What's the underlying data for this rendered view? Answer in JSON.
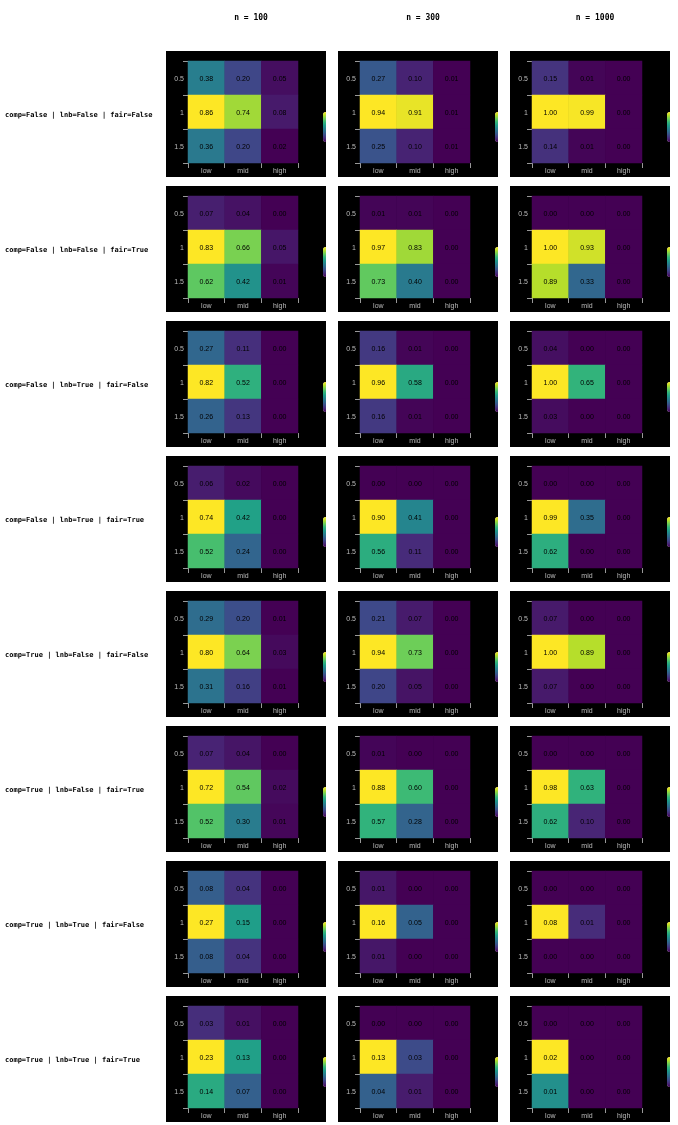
{
  "chart_data": [
    {
      "type": "heatmap",
      "title": "n = 100",
      "ylabel": "comp=False | lnb=False | fair=False",
      "categories": [
        "low",
        "mid",
        "high"
      ],
      "y_categories": [
        "0.5",
        "1",
        "1.5"
      ],
      "cells": [
        [
          0.38,
          0.2,
          0.05
        ],
        [
          0.86,
          0.74,
          0.08
        ],
        [
          0.36,
          0.2,
          0.02
        ]
      ],
      "cell_labels": [
        [
          "0.38",
          "0.20",
          "0.05"
        ],
        [
          "0.86",
          "0.74",
          "0.08"
        ],
        [
          "0.36",
          "0.20",
          "0.02"
        ]
      ]
    },
    {
      "type": "heatmap",
      "title": "n = 300",
      "categories": [
        "low",
        "mid",
        "high"
      ],
      "y_categories": [
        "0.5",
        "1",
        "1.5"
      ],
      "cells": [
        [
          0.27,
          0.1,
          0.01
        ],
        [
          0.94,
          0.91,
          0.01
        ],
        [
          0.25,
          0.1,
          0.01
        ]
      ],
      "cell_labels": [
        [
          "0.27",
          "0.10",
          "0.01"
        ],
        [
          "0.94",
          "0.91",
          "0.01"
        ],
        [
          "0.25",
          "0.10",
          "0.01"
        ]
      ]
    },
    {
      "type": "heatmap",
      "title": "n = 1000",
      "categories": [
        "low",
        "mid",
        "high"
      ],
      "y_categories": [
        "0.5",
        "1",
        "1.5"
      ],
      "cells": [
        [
          0.15,
          0.01,
          0.0
        ],
        [
          1.0,
          0.99,
          0.0
        ],
        [
          0.14,
          0.01,
          0.0
        ]
      ],
      "cell_labels": [
        [
          "0.15",
          "0.01",
          "0.00"
        ],
        [
          "1.00",
          "0.99",
          "0.00"
        ],
        [
          "0.14",
          "0.01",
          "0.00"
        ]
      ]
    },
    {
      "type": "heatmap",
      "ylabel": "comp=False | lnb=False | fair=True",
      "categories": [
        "low",
        "mid",
        "high"
      ],
      "y_categories": [
        "0.5",
        "1",
        "1.5"
      ],
      "cells": [
        [
          0.07,
          0.04,
          0.0
        ],
        [
          0.83,
          0.66,
          0.05
        ],
        [
          0.62,
          0.42,
          0.01
        ]
      ],
      "cell_labels": [
        [
          "0.07",
          "0.04",
          "0.00"
        ],
        [
          "0.83",
          "0.66",
          "0.05"
        ],
        [
          "0.62",
          "0.42",
          "0.01"
        ]
      ]
    },
    {
      "type": "heatmap",
      "categories": [
        "low",
        "mid",
        "high"
      ],
      "y_categories": [
        "0.5",
        "1",
        "1.5"
      ],
      "cells": [
        [
          0.01,
          0.01,
          0.0
        ],
        [
          0.97,
          0.83,
          0.0
        ],
        [
          0.73,
          0.4,
          0.0
        ]
      ],
      "cell_labels": [
        [
          "0.01",
          "0.01",
          "0.00"
        ],
        [
          "0.97",
          "0.83",
          "0.00"
        ],
        [
          "0.73",
          "0.40",
          "0.00"
        ]
      ]
    },
    {
      "type": "heatmap",
      "categories": [
        "low",
        "mid",
        "high"
      ],
      "y_categories": [
        "0.5",
        "1",
        "1.5"
      ],
      "cells": [
        [
          0.0,
          0.0,
          0.0
        ],
        [
          1.0,
          0.93,
          0.0
        ],
        [
          0.89,
          0.33,
          0.0
        ]
      ],
      "cell_labels": [
        [
          "0.00",
          "0.00",
          "0.00"
        ],
        [
          "1.00",
          "0.93",
          "0.00"
        ],
        [
          "0.89",
          "0.33",
          "0.00"
        ]
      ]
    },
    {
      "type": "heatmap",
      "ylabel": "comp=False | lnb=True | fair=False",
      "categories": [
        "low",
        "mid",
        "high"
      ],
      "y_categories": [
        "0.5",
        "1",
        "1.5"
      ],
      "cells": [
        [
          0.27,
          0.11,
          0.0
        ],
        [
          0.82,
          0.52,
          0.0
        ],
        [
          0.26,
          0.13,
          0.0
        ]
      ],
      "cell_labels": [
        [
          "0.27",
          "0.11",
          "0.00"
        ],
        [
          "0.82",
          "0.52",
          "0.00"
        ],
        [
          "0.26",
          "0.13",
          "0.00"
        ]
      ]
    },
    {
      "type": "heatmap",
      "categories": [
        "low",
        "mid",
        "high"
      ],
      "y_categories": [
        "0.5",
        "1",
        "1.5"
      ],
      "cells": [
        [
          0.16,
          0.01,
          0.0
        ],
        [
          0.96,
          0.58,
          0.0
        ],
        [
          0.16,
          0.01,
          0.0
        ]
      ],
      "cell_labels": [
        [
          "0.16",
          "0.01",
          "0.00"
        ],
        [
          "0.96",
          "0.58",
          "0.00"
        ],
        [
          "0.16",
          "0.01",
          "0.00"
        ]
      ]
    },
    {
      "type": "heatmap",
      "categories": [
        "low",
        "mid",
        "high"
      ],
      "y_categories": [
        "0.5",
        "1",
        "1.5"
      ],
      "cells": [
        [
          0.04,
          0.0,
          0.0
        ],
        [
          1.0,
          0.65,
          0.0
        ],
        [
          0.03,
          0.0,
          0.0
        ]
      ],
      "cell_labels": [
        [
          "0.04",
          "0.00",
          "0.00"
        ],
        [
          "1.00",
          "0.65",
          "0.00"
        ],
        [
          "0.03",
          "0.00",
          "0.00"
        ]
      ]
    },
    {
      "type": "heatmap",
      "ylabel": "comp=False | lnb=True | fair=True",
      "categories": [
        "low",
        "mid",
        "high"
      ],
      "y_categories": [
        "0.5",
        "1",
        "1.5"
      ],
      "cells": [
        [
          0.06,
          0.02,
          0.0
        ],
        [
          0.74,
          0.42,
          0.0
        ],
        [
          0.52,
          0.24,
          0.0
        ]
      ],
      "cell_labels": [
        [
          "0.06",
          "0.02",
          "0.00"
        ],
        [
          "0.74",
          "0.42",
          "0.00"
        ],
        [
          "0.52",
          "0.24",
          "0.00"
        ]
      ]
    },
    {
      "type": "heatmap",
      "categories": [
        "low",
        "mid",
        "high"
      ],
      "y_categories": [
        "0.5",
        "1",
        "1.5"
      ],
      "cells": [
        [
          0.0,
          0.0,
          0.0
        ],
        [
          0.9,
          0.41,
          0.0
        ],
        [
          0.56,
          0.11,
          0.0
        ]
      ],
      "cell_labels": [
        [
          "0.00",
          "0.00",
          "0.00"
        ],
        [
          "0.90",
          "0.41",
          "0.00"
        ],
        [
          "0.56",
          "0.11",
          "0.00"
        ]
      ]
    },
    {
      "type": "heatmap",
      "categories": [
        "low",
        "mid",
        "high"
      ],
      "y_categories": [
        "0.5",
        "1",
        "1.5"
      ],
      "cells": [
        [
          0.0,
          0.0,
          0.0
        ],
        [
          0.99,
          0.35,
          0.0
        ],
        [
          0.62,
          0.0,
          0.0
        ]
      ],
      "cell_labels": [
        [
          "0.00",
          "0.00",
          "0.00"
        ],
        [
          "0.99",
          "0.35",
          "0.00"
        ],
        [
          "0.62",
          "0.00",
          "0.00"
        ]
      ]
    },
    {
      "type": "heatmap",
      "ylabel": "comp=True | lnb=False | fair=False",
      "categories": [
        "low",
        "mid",
        "high"
      ],
      "y_categories": [
        "0.5",
        "1",
        "1.5"
      ],
      "cells": [
        [
          0.29,
          0.2,
          0.01
        ],
        [
          0.8,
          0.64,
          0.03
        ],
        [
          0.31,
          0.16,
          0.01
        ]
      ],
      "cell_labels": [
        [
          "0.29",
          "0.20",
          "0.01"
        ],
        [
          "0.80",
          "0.64",
          "0.03"
        ],
        [
          "0.31",
          "0.16",
          "0.01"
        ]
      ]
    },
    {
      "type": "heatmap",
      "categories": [
        "low",
        "mid",
        "high"
      ],
      "y_categories": [
        "0.5",
        "1",
        "1.5"
      ],
      "cells": [
        [
          0.21,
          0.07,
          0.0
        ],
        [
          0.94,
          0.73,
          0.0
        ],
        [
          0.2,
          0.05,
          0.0
        ]
      ],
      "cell_labels": [
        [
          "0.21",
          "0.07",
          "0.00"
        ],
        [
          "0.94",
          "0.73",
          "0.00"
        ],
        [
          "0.20",
          "0.05",
          "0.00"
        ]
      ]
    },
    {
      "type": "heatmap",
      "categories": [
        "low",
        "mid",
        "high"
      ],
      "y_categories": [
        "0.5",
        "1",
        "1.5"
      ],
      "cells": [
        [
          0.07,
          0.0,
          0.0
        ],
        [
          1.0,
          0.89,
          0.0
        ],
        [
          0.07,
          0.0,
          0.0
        ]
      ],
      "cell_labels": [
        [
          "0.07",
          "0.00",
          "0.00"
        ],
        [
          "1.00",
          "0.89",
          "0.00"
        ],
        [
          "0.07",
          "0.00",
          "0.00"
        ]
      ]
    },
    {
      "type": "heatmap",
      "ylabel": "comp=True | lnb=False | fair=True",
      "categories": [
        "low",
        "mid",
        "high"
      ],
      "y_categories": [
        "0.5",
        "1",
        "1.5"
      ],
      "cells": [
        [
          0.07,
          0.04,
          0.0
        ],
        [
          0.72,
          0.54,
          0.02
        ],
        [
          0.52,
          0.3,
          0.01
        ]
      ],
      "cell_labels": [
        [
          "0.07",
          "0.04",
          "0.00"
        ],
        [
          "0.72",
          "0.54",
          "0.02"
        ],
        [
          "0.52",
          "0.30",
          "0.01"
        ]
      ]
    },
    {
      "type": "heatmap",
      "categories": [
        "low",
        "mid",
        "high"
      ],
      "y_categories": [
        "0.5",
        "1",
        "1.5"
      ],
      "cells": [
        [
          0.01,
          0.0,
          0.0
        ],
        [
          0.88,
          0.6,
          0.0
        ],
        [
          0.57,
          0.28,
          0.0
        ]
      ],
      "cell_labels": [
        [
          "0.01",
          "0.00",
          "0.00"
        ],
        [
          "0.88",
          "0.60",
          "0.00"
        ],
        [
          "0.57",
          "0.28",
          "0.00"
        ]
      ]
    },
    {
      "type": "heatmap",
      "categories": [
        "low",
        "mid",
        "high"
      ],
      "y_categories": [
        "0.5",
        "1",
        "1.5"
      ],
      "cells": [
        [
          0.0,
          0.0,
          0.0
        ],
        [
          0.98,
          0.63,
          0.0
        ],
        [
          0.62,
          0.1,
          0.0
        ]
      ],
      "cell_labels": [
        [
          "0.00",
          "0.00",
          "0.00"
        ],
        [
          "0.98",
          "0.63",
          "0.00"
        ],
        [
          "0.62",
          "0.10",
          "0.00"
        ]
      ]
    },
    {
      "type": "heatmap",
      "ylabel": "comp=True | lnb=True | fair=False",
      "categories": [
        "low",
        "mid",
        "high"
      ],
      "y_categories": [
        "0.5",
        "1",
        "1.5"
      ],
      "cells": [
        [
          0.08,
          0.04,
          0.0
        ],
        [
          0.27,
          0.15,
          0.0
        ],
        [
          0.08,
          0.04,
          0.0
        ]
      ],
      "cell_labels": [
        [
          "0.08",
          "0.04",
          "0.00"
        ],
        [
          "0.27",
          "0.15",
          "0.00"
        ],
        [
          "0.08",
          "0.04",
          "0.00"
        ]
      ]
    },
    {
      "type": "heatmap",
      "categories": [
        "low",
        "mid",
        "high"
      ],
      "y_categories": [
        "0.5",
        "1",
        "1.5"
      ],
      "cells": [
        [
          0.01,
          0.0,
          0.0
        ],
        [
          0.16,
          0.05,
          0.0
        ],
        [
          0.01,
          0.0,
          0.0
        ]
      ],
      "cell_labels": [
        [
          "0.01",
          "0.00",
          "0.00"
        ],
        [
          "0.16",
          "0.05",
          "0.00"
        ],
        [
          "0.01",
          "0.00",
          "0.00"
        ]
      ]
    },
    {
      "type": "heatmap",
      "categories": [
        "low",
        "mid",
        "high"
      ],
      "y_categories": [
        "0.5",
        "1",
        "1.5"
      ],
      "cells": [
        [
          0.0,
          0.0,
          0.0
        ],
        [
          0.08,
          0.01,
          0.0
        ],
        [
          0.0,
          0.0,
          0.0
        ]
      ],
      "cell_labels": [
        [
          "0.00",
          "0.00",
          "0.00"
        ],
        [
          "0.08",
          "0.01",
          "0.00"
        ],
        [
          "0.00",
          "0.00",
          "0.00"
        ]
      ]
    },
    {
      "type": "heatmap",
      "ylabel": "comp=True | lnb=True | fair=True",
      "categories": [
        "low",
        "mid",
        "high"
      ],
      "y_categories": [
        "0.5",
        "1",
        "1.5"
      ],
      "cells": [
        [
          0.03,
          0.01,
          0.0
        ],
        [
          0.23,
          0.13,
          0.0
        ],
        [
          0.14,
          0.07,
          0.0
        ]
      ],
      "cell_labels": [
        [
          "0.03",
          "0.01",
          "0.00"
        ],
        [
          "0.23",
          "0.13",
          "0.00"
        ],
        [
          "0.14",
          "0.07",
          "0.00"
        ]
      ]
    },
    {
      "type": "heatmap",
      "categories": [
        "low",
        "mid",
        "high"
      ],
      "y_categories": [
        "0.5",
        "1",
        "1.5"
      ],
      "cells": [
        [
          0.0,
          0.0,
          0.0
        ],
        [
          0.13,
          0.03,
          0.0
        ],
        [
          0.04,
          0.01,
          0.0
        ]
      ],
      "cell_labels": [
        [
          "0.00",
          "0.00",
          "0.00"
        ],
        [
          "0.13",
          "0.03",
          "0.00"
        ],
        [
          "0.04",
          "0.01",
          "0.00"
        ]
      ]
    },
    {
      "type": "heatmap",
      "categories": [
        "low",
        "mid",
        "high"
      ],
      "y_categories": [
        "0.5",
        "1",
        "1.5"
      ],
      "cells": [
        [
          0.0,
          0.0,
          0.0
        ],
        [
          0.02,
          0.0,
          0.0
        ],
        [
          0.01,
          0.0,
          0.0
        ]
      ],
      "cell_labels": [
        [
          "0.00",
          "0.00",
          "0.00"
        ],
        [
          "0.02",
          "0.00",
          "0.00"
        ],
        [
          "0.01",
          "0.00",
          "0.00"
        ]
      ]
    }
  ]
}
